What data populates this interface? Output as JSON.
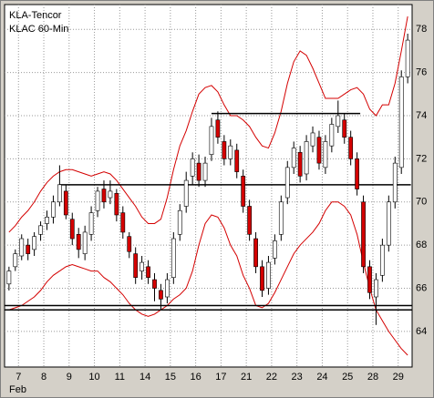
{
  "chart_data": {
    "type": "candlestick",
    "title": "KLA-Tencor",
    "subtitle": "KLAC 60-Min",
    "x_axis_label": "Feb",
    "up_color": "#ffffff",
    "down_color": "#d40000",
    "band_color": "#d40000",
    "level_color": "#000000",
    "grid": true,
    "xlim": [
      -0.7,
      63.7
    ],
    "xticks": [
      {
        "value": 1.5,
        "label": "7"
      },
      {
        "value": 5.5,
        "label": "8"
      },
      {
        "value": 9.5,
        "label": "9"
      },
      {
        "value": 13.5,
        "label": "10"
      },
      {
        "value": 17.5,
        "label": "11"
      },
      {
        "value": 21.5,
        "label": "14"
      },
      {
        "value": 25.5,
        "label": "15"
      },
      {
        "value": 29.5,
        "label": "16"
      },
      {
        "value": 33.5,
        "label": "17"
      },
      {
        "value": 37.5,
        "label": "21"
      },
      {
        "value": 41.5,
        "label": "22"
      },
      {
        "value": 45.5,
        "label": "23"
      },
      {
        "value": 49.5,
        "label": "24"
      },
      {
        "value": 53.5,
        "label": "25"
      },
      {
        "value": 57.5,
        "label": "28"
      },
      {
        "value": 61.5,
        "label": "29"
      }
    ],
    "ylim": [
      62.35,
      79.15
    ],
    "yticks": [
      64,
      66,
      68,
      70,
      72,
      74,
      76,
      78
    ],
    "candles": [
      [
        66.2,
        67.0,
        65.9,
        66.8
      ],
      [
        67.0,
        67.8,
        66.8,
        67.6
      ],
      [
        67.5,
        68.5,
        67.3,
        68.3
      ],
      [
        68.0,
        68.3,
        67.3,
        67.6
      ],
      [
        67.8,
        68.6,
        67.5,
        68.4
      ],
      [
        68.5,
        69.1,
        68.2,
        68.9
      ],
      [
        69.0,
        69.6,
        68.7,
        69.3
      ],
      [
        69.3,
        70.3,
        69.0,
        70.0
      ],
      [
        70.0,
        71.7,
        69.8,
        70.8
      ],
      [
        70.5,
        70.8,
        69.2,
        69.4
      ],
      [
        69.2,
        69.5,
        68.0,
        68.3
      ],
      [
        68.5,
        68.8,
        67.4,
        67.8
      ],
      [
        67.6,
        68.9,
        67.3,
        68.6
      ],
      [
        68.5,
        69.8,
        68.2,
        69.5
      ],
      [
        69.6,
        70.7,
        69.3,
        70.5
      ],
      [
        70.6,
        71.0,
        69.7,
        70.0
      ],
      [
        70.2,
        71.0,
        69.9,
        70.5
      ],
      [
        70.4,
        70.6,
        69.1,
        69.4
      ],
      [
        69.5,
        69.8,
        68.3,
        68.6
      ],
      [
        68.4,
        68.6,
        67.4,
        67.7
      ],
      [
        67.6,
        67.9,
        66.2,
        66.5
      ],
      [
        66.8,
        67.5,
        66.4,
        67.2
      ],
      [
        67.0,
        67.3,
        66.2,
        66.5
      ],
      [
        66.4,
        66.7,
        65.4,
        66.0
      ],
      [
        65.9,
        66.2,
        65.0,
        65.5
      ],
      [
        65.6,
        66.7,
        65.3,
        66.4
      ],
      [
        66.5,
        68.6,
        66.2,
        68.3
      ],
      [
        68.5,
        69.9,
        68.2,
        69.6
      ],
      [
        69.8,
        71.4,
        69.5,
        71.0
      ],
      [
        71.2,
        72.3,
        70.8,
        72.0
      ],
      [
        71.8,
        72.2,
        70.7,
        71.0
      ],
      [
        71.0,
        72.1,
        70.7,
        71.8
      ],
      [
        72.2,
        73.9,
        71.9,
        73.5
      ],
      [
        73.8,
        74.2,
        72.7,
        73.0
      ],
      [
        72.8,
        73.1,
        71.7,
        72.0
      ],
      [
        72.0,
        72.9,
        71.7,
        72.6
      ],
      [
        72.4,
        72.7,
        71.1,
        71.4
      ],
      [
        71.2,
        71.5,
        69.5,
        69.8
      ],
      [
        69.8,
        70.1,
        68.2,
        68.5
      ],
      [
        68.3,
        68.6,
        66.7,
        67.0
      ],
      [
        67.0,
        67.3,
        65.6,
        65.9
      ],
      [
        66.0,
        67.5,
        65.7,
        67.2
      ],
      [
        67.4,
        68.5,
        67.1,
        68.2
      ],
      [
        68.5,
        70.3,
        68.2,
        70.0
      ],
      [
        70.2,
        71.9,
        69.9,
        71.6
      ],
      [
        71.6,
        72.8,
        71.3,
        72.5
      ],
      [
        72.3,
        72.6,
        70.9,
        71.2
      ],
      [
        71.3,
        73.1,
        71.0,
        72.8
      ],
      [
        72.6,
        73.5,
        72.3,
        73.2
      ],
      [
        73.0,
        73.3,
        71.5,
        71.8
      ],
      [
        71.6,
        73.1,
        71.3,
        72.8
      ],
      [
        72.6,
        73.9,
        72.3,
        73.6
      ],
      [
        73.5,
        74.7,
        73.2,
        74.0
      ],
      [
        73.8,
        74.1,
        72.7,
        73.0
      ],
      [
        73.0,
        73.3,
        71.7,
        72.0
      ],
      [
        72.0,
        72.3,
        70.3,
        70.6
      ],
      [
        70.0,
        70.3,
        66.7,
        67.0
      ],
      [
        67.0,
        67.3,
        65.5,
        65.8
      ],
      [
        65.6,
        66.7,
        64.3,
        66.4
      ],
      [
        66.6,
        68.3,
        66.3,
        68.0
      ],
      [
        68.0,
        70.3,
        67.7,
        70.0
      ],
      [
        70.0,
        72.1,
        69.7,
        71.8
      ],
      [
        71.6,
        76.1,
        71.3,
        75.8
      ],
      [
        75.8,
        77.8,
        75.5,
        77.5
      ]
    ],
    "upper_band": [
      68.6,
      68.9,
      69.3,
      69.6,
      70.0,
      70.5,
      70.9,
      71.2,
      71.4,
      71.5,
      71.5,
      71.4,
      71.3,
      71.2,
      71.3,
      71.4,
      71.3,
      71.0,
      70.6,
      70.2,
      69.8,
      69.3,
      69.0,
      69.0,
      69.2,
      70.2,
      71.5,
      72.6,
      73.3,
      74.2,
      75.0,
      75.3,
      75.4,
      75.1,
      74.5,
      74.0,
      74.0,
      73.8,
      73.5,
      73.0,
      72.6,
      72.5,
      73.2,
      74.2,
      75.5,
      76.5,
      77.0,
      76.8,
      76.2,
      75.5,
      74.8,
      74.8,
      74.8,
      75.0,
      75.2,
      75.3,
      75.0,
      74.3,
      74.0,
      74.5,
      74.5,
      75.5,
      77.0,
      78.6
    ],
    "lower_band": [
      65.0,
      65.1,
      65.2,
      65.4,
      65.6,
      65.9,
      66.3,
      66.6,
      66.8,
      67.0,
      67.1,
      67.0,
      66.9,
      66.8,
      66.8,
      66.5,
      66.3,
      66.0,
      65.7,
      65.3,
      65.0,
      64.8,
      64.7,
      64.8,
      65.0,
      65.2,
      65.5,
      65.7,
      66.0,
      66.8,
      68.0,
      69.0,
      69.4,
      69.3,
      68.8,
      68.0,
      67.5,
      66.6,
      66.0,
      65.2,
      65.1,
      65.3,
      65.8,
      66.4,
      67.0,
      67.6,
      68.0,
      68.3,
      68.6,
      69.0,
      69.6,
      70.0,
      70.0,
      69.8,
      69.4,
      68.5,
      67.2,
      66.0,
      65.0,
      64.5,
      64.0,
      63.6,
      63.2,
      62.9
    ],
    "levels": [
      {
        "value": 74.1,
        "from": 32,
        "to": 55.5
      },
      {
        "value": 70.8,
        "from": 8,
        "to": 63.5
      },
      {
        "value": 65.2,
        "from": -0.7,
        "to": 63.7
      },
      {
        "value": 65.0,
        "from": -0.7,
        "to": 63.7
      }
    ]
  }
}
